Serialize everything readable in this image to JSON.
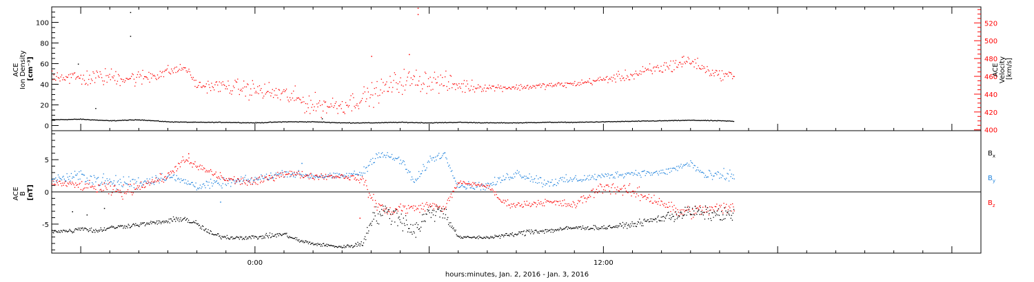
{
  "colors": {
    "black": "#000000",
    "red": "#ff0000",
    "blue": "#1e82dc"
  },
  "x_axis_title": "hours:minutes, Jan.  2, 2016 - Jan.  3, 2016",
  "chart_data": [
    {
      "type": "scatter",
      "panel": "top",
      "left_axis": {
        "label_lines": [
          "ACE",
          "Ion Density",
          "[cm⁻³]"
        ],
        "range": [
          -5,
          115
        ],
        "ticks": [
          0,
          20,
          40,
          60,
          80,
          100
        ]
      },
      "right_axis": {
        "label_lines": [
          "ACE",
          "Velocity",
          "[km/s]"
        ],
        "range": [
          399,
          538
        ],
        "ticks": [
          400,
          420,
          440,
          460,
          480,
          500,
          520
        ],
        "color": "#ff0000"
      },
      "x_range_hours": [
        -7,
        25
      ],
      "x_ticks": [
        {
          "hour": 0,
          "label": "0:00"
        },
        {
          "hour": 12,
          "label": "12:00"
        }
      ],
      "series": [
        {
          "axis": "left",
          "color": "#000000",
          "x_start": -7,
          "x_end": 16.5,
          "x": [
            -7,
            -6,
            -5,
            -4,
            -3,
            -2,
            -1,
            0,
            1,
            2,
            3,
            4,
            5,
            6,
            7,
            8,
            9,
            10,
            11,
            12,
            13,
            14,
            15,
            16,
            16.5
          ],
          "y": [
            6,
            6.5,
            5,
            6,
            4,
            3.5,
            3.5,
            3,
            4,
            4,
            3,
            3,
            3.5,
            3,
            3.5,
            3,
            3,
            3.5,
            3.5,
            4,
            4.5,
            5,
            5.5,
            5,
            4.5
          ],
          "outliers": [
            [
              -4.3,
              110
            ],
            [
              -4.3,
              87
            ],
            [
              -6.1,
              60
            ],
            [
              -5.5,
              17
            ],
            [
              2.3,
              7
            ]
          ]
        },
        {
          "axis": "right",
          "color": "#ff0000",
          "x_start": -7,
          "x_end": 16.5,
          "x": [
            -7,
            -6,
            -5,
            -4,
            -3,
            -2.4,
            -2,
            -1,
            0,
            1,
            2,
            3,
            4,
            5,
            6,
            7,
            8,
            9,
            10,
            11,
            12,
            13,
            14,
            15,
            15.5,
            16,
            16.5
          ],
          "y": [
            462,
            458,
            460,
            458,
            466,
            470,
            450,
            449,
            445,
            440,
            428,
            428,
            440,
            455,
            456,
            450,
            448,
            448,
            450,
            452,
            457,
            462,
            470,
            478,
            468,
            462,
            462
          ],
          "spread": [
            10,
            14,
            14,
            14,
            10,
            6,
            8,
            12,
            16,
            16,
            18,
            16,
            18,
            20,
            20,
            14,
            6,
            5,
            5,
            5,
            6,
            10,
            12,
            12,
            8,
            8,
            6
          ],
          "outliers": [
            [
              5.6,
              537
            ],
            [
              5.6,
              530
            ],
            [
              5.3,
              485
            ],
            [
              4.0,
              483
            ],
            [
              14.7,
              482
            ]
          ]
        }
      ]
    },
    {
      "type": "scatter",
      "panel": "bottom",
      "left_axis": {
        "label_lines": [
          "ACE",
          "B",
          "[nT]"
        ],
        "range": [
          -9.5,
          9.5
        ],
        "ticks": [
          5,
          0,
          -5
        ]
      },
      "x_range_hours": [
        -7,
        25
      ],
      "x_ticks": [
        {
          "hour": 0,
          "label": "0:00"
        },
        {
          "hour": 12,
          "label": "12:00"
        }
      ],
      "zero_line": true,
      "legend": [
        {
          "label": "B",
          "sub": "x",
          "color": "#000000"
        },
        {
          "label": "B",
          "sub": "y",
          "color": "#1e82dc"
        },
        {
          "label": "B",
          "sub": "z",
          "color": "#ff0000"
        }
      ],
      "series": [
        {
          "name": "Bx",
          "color": "#000000",
          "x": [
            -7,
            -6.3,
            -6,
            -5.5,
            -5,
            -4,
            -3,
            -2.5,
            -2,
            -1.5,
            -1,
            0,
            1,
            1.5,
            2,
            3,
            3.7,
            4,
            4.5,
            5,
            5.5,
            6,
            6.5,
            7,
            8,
            9,
            9.5,
            10,
            11,
            12,
            13,
            14,
            14.5,
            15,
            16,
            16.5
          ],
          "y": [
            -6,
            -6,
            -5.5,
            -6,
            -5.5,
            -5,
            -4.5,
            -4,
            -5,
            -6.5,
            -7,
            -7,
            -6.5,
            -7.5,
            -8,
            -8.5,
            -8,
            -4,
            -3,
            -4,
            -6,
            -3,
            -3,
            -7,
            -7,
            -6.5,
            -6,
            -6,
            -5.5,
            -5.5,
            -5,
            -4,
            -3.5,
            -3,
            -3.5,
            -3.5
          ],
          "spread": [
            0.5,
            0.5,
            0.5,
            0.6,
            0.5,
            0.5,
            0.5,
            0.8,
            0.8,
            0.6,
            0.5,
            0.5,
            0.5,
            0.5,
            0.4,
            0.3,
            0.8,
            2,
            2,
            2.5,
            2.5,
            2,
            2,
            0.3,
            0.4,
            0.5,
            0.8,
            0.6,
            0.5,
            0.5,
            0.6,
            1,
            1.5,
            1.5,
            1.5,
            1.5
          ],
          "outliers": [
            [
              -6.3,
              -3
            ],
            [
              -5.2,
              -2.5
            ],
            [
              -5.8,
              -3.5
            ]
          ]
        },
        {
          "name": "By",
          "color": "#1e82dc",
          "x": [
            -7,
            -6,
            -5,
            -4,
            -3,
            -2,
            -1,
            0,
            1,
            2,
            3,
            3.7,
            4.2,
            5,
            5.5,
            6,
            6.5,
            7,
            8,
            9,
            10,
            11,
            12,
            13,
            14,
            15,
            15.5,
            16,
            16.5
          ],
          "y": [
            2,
            2.5,
            1.5,
            1.5,
            2.5,
            1,
            1.5,
            2,
            3,
            2.5,
            2.5,
            3,
            6,
            5,
            1.5,
            5,
            6,
            1,
            1,
            3,
            1.5,
            2,
            2.5,
            3,
            3,
            4.5,
            2.5,
            2.5,
            2.5
          ],
          "spread": [
            1,
            1.5,
            1.5,
            1.5,
            1,
            1,
            1,
            1,
            0.8,
            0.8,
            0.6,
            1,
            1,
            1,
            1.2,
            1,
            0.8,
            0.8,
            1,
            1,
            1.2,
            1,
            0.8,
            0.8,
            0.8,
            1,
            1.2,
            1.5,
            1.5
          ],
          "outliers": [
            [
              -1.2,
              -1.5
            ],
            [
              1.6,
              4.5
            ]
          ]
        },
        {
          "name": "Bz",
          "color": "#ff0000",
          "x": [
            -7,
            -6,
            -5.2,
            -4.5,
            -4,
            -3,
            -2.5,
            -2,
            -1.5,
            -1,
            0,
            1,
            2,
            3,
            3.7,
            4,
            4.5,
            5,
            5.5,
            6,
            6.5,
            7,
            8,
            8.5,
            9,
            10,
            11,
            12,
            13,
            14,
            14.5,
            15,
            16,
            16.5
          ],
          "y": [
            1.5,
            1,
            0.5,
            0,
            1,
            2.5,
            5,
            4,
            3,
            2,
            1.5,
            3,
            2.5,
            2.5,
            2,
            -1,
            -3,
            -2.5,
            -2.5,
            -2,
            -2.5,
            1.5,
            1,
            -1.5,
            -2,
            -1.5,
            -2,
            1,
            0,
            -1.5,
            -3,
            -3,
            -2.5,
            -2.5
          ],
          "spread": [
            0.8,
            1,
            1.5,
            1.5,
            1,
            1,
            1,
            1,
            1,
            1,
            1,
            0.8,
            0.8,
            0.6,
            0.8,
            1.5,
            1.5,
            1.5,
            1,
            1,
            0.8,
            0.5,
            0.5,
            0.8,
            0.8,
            0.8,
            1,
            1.5,
            1.5,
            1.5,
            1.5,
            1.5,
            1.5,
            1.5
          ],
          "outliers": [
            [
              -2.3,
              6
            ],
            [
              3.6,
              -4
            ]
          ]
        }
      ]
    }
  ]
}
